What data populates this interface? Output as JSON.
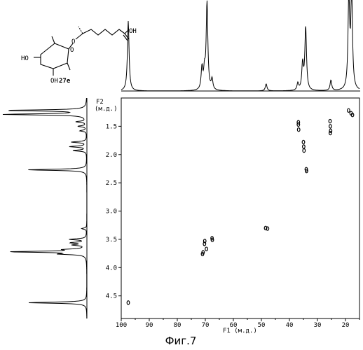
{
  "caption": "Фиг.7",
  "compound": {
    "label": "27e",
    "oh_top": "OH",
    "oh_left": "HO",
    "oh_bottom": "OH",
    "o_ring": "O",
    "o_link": "O"
  },
  "chart_data": {
    "type": "scatter",
    "subtype": "2D NMR (HSQC) contour plot",
    "xlabel": "F1 (м.д.)",
    "ylabel": "F2\n(м.д.)",
    "xlim": [
      100,
      15
    ],
    "ylim": [
      1.0,
      4.9
    ],
    "x_ticks": [
      {
        "value": 100,
        "label": "100"
      },
      {
        "value": 90,
        "label": "90"
      },
      {
        "value": 80,
        "label": "80"
      },
      {
        "value": 70,
        "label": "70"
      },
      {
        "value": 60,
        "label": "60"
      },
      {
        "value": 50,
        "label": "50"
      },
      {
        "value": 40,
        "label": "40"
      },
      {
        "value": 30,
        "label": "30"
      },
      {
        "value": 20,
        "label": "20"
      }
    ],
    "y_ticks": [
      {
        "value": 1.5,
        "label": "1.5"
      },
      {
        "value": 2.0,
        "label": "2.0"
      },
      {
        "value": 2.5,
        "label": "2.5"
      },
      {
        "value": 3.0,
        "label": "3.0"
      },
      {
        "value": 3.5,
        "label": "3.5"
      },
      {
        "value": 4.0,
        "label": "4.0"
      },
      {
        "value": 4.5,
        "label": "4.5"
      }
    ],
    "grid": false,
    "cross_peaks": [
      {
        "x": 97.5,
        "y": 4.62
      },
      {
        "x": 71.0,
        "y": 3.76
      },
      {
        "x": 70.8,
        "y": 3.73
      },
      {
        "x": 70.3,
        "y": 3.58
      },
      {
        "x": 70.2,
        "y": 3.53
      },
      {
        "x": 69.6,
        "y": 3.67
      },
      {
        "x": 67.6,
        "y": 3.48
      },
      {
        "x": 67.5,
        "y": 3.51
      },
      {
        "x": 48.5,
        "y": 3.3
      },
      {
        "x": 47.8,
        "y": 3.31
      },
      {
        "x": 36.8,
        "y": 1.43
      },
      {
        "x": 36.8,
        "y": 1.47
      },
      {
        "x": 36.7,
        "y": 1.56
      },
      {
        "x": 35.0,
        "y": 1.78
      },
      {
        "x": 34.9,
        "y": 1.86
      },
      {
        "x": 34.8,
        "y": 1.93
      },
      {
        "x": 34.0,
        "y": 2.26
      },
      {
        "x": 33.9,
        "y": 2.29
      },
      {
        "x": 25.5,
        "y": 1.41
      },
      {
        "x": 25.4,
        "y": 1.5
      },
      {
        "x": 25.3,
        "y": 1.58
      },
      {
        "x": 25.4,
        "y": 1.62
      },
      {
        "x": 18.9,
        "y": 1.22
      },
      {
        "x": 18.0,
        "y": 1.27
      },
      {
        "x": 17.5,
        "y": 1.3
      }
    ],
    "projection_f1": {
      "description": "13C projection spectrum (top)",
      "peaks": [
        {
          "x": 97.5,
          "h": 0.8
        },
        {
          "x": 71.2,
          "h": 0.25
        },
        {
          "x": 70.3,
          "h": 0.2
        },
        {
          "x": 69.4,
          "h": 1.0
        },
        {
          "x": 67.6,
          "h": 0.12
        },
        {
          "x": 48.3,
          "h": 0.08
        },
        {
          "x": 37.0,
          "h": 0.08
        },
        {
          "x": 35.3,
          "h": 0.3
        },
        {
          "x": 34.2,
          "h": 0.72
        },
        {
          "x": 25.2,
          "h": 0.12
        },
        {
          "x": 18.8,
          "h": 1.05
        },
        {
          "x": 17.8,
          "h": 1.1
        }
      ]
    },
    "projection_f2": {
      "description": "1H projection spectrum (left)",
      "peaks": [
        {
          "y": 1.22,
          "h": 0.95
        },
        {
          "y": 1.29,
          "h": 0.98
        },
        {
          "y": 1.42,
          "h": 0.12
        },
        {
          "y": 1.5,
          "h": 0.1
        },
        {
          "y": 1.58,
          "h": 0.08
        },
        {
          "y": 1.78,
          "h": 0.18
        },
        {
          "y": 1.86,
          "h": 0.2
        },
        {
          "y": 1.93,
          "h": 0.16
        },
        {
          "y": 2.27,
          "h": 0.7
        },
        {
          "y": 3.31,
          "h": 0.06
        },
        {
          "y": 3.5,
          "h": 0.2
        },
        {
          "y": 3.56,
          "h": 0.18
        },
        {
          "y": 3.6,
          "h": 0.15
        },
        {
          "y": 3.68,
          "h": 0.22
        },
        {
          "y": 3.72,
          "h": 0.9
        },
        {
          "y": 3.76,
          "h": 0.28
        },
        {
          "y": 4.62,
          "h": 0.7
        }
      ]
    }
  }
}
